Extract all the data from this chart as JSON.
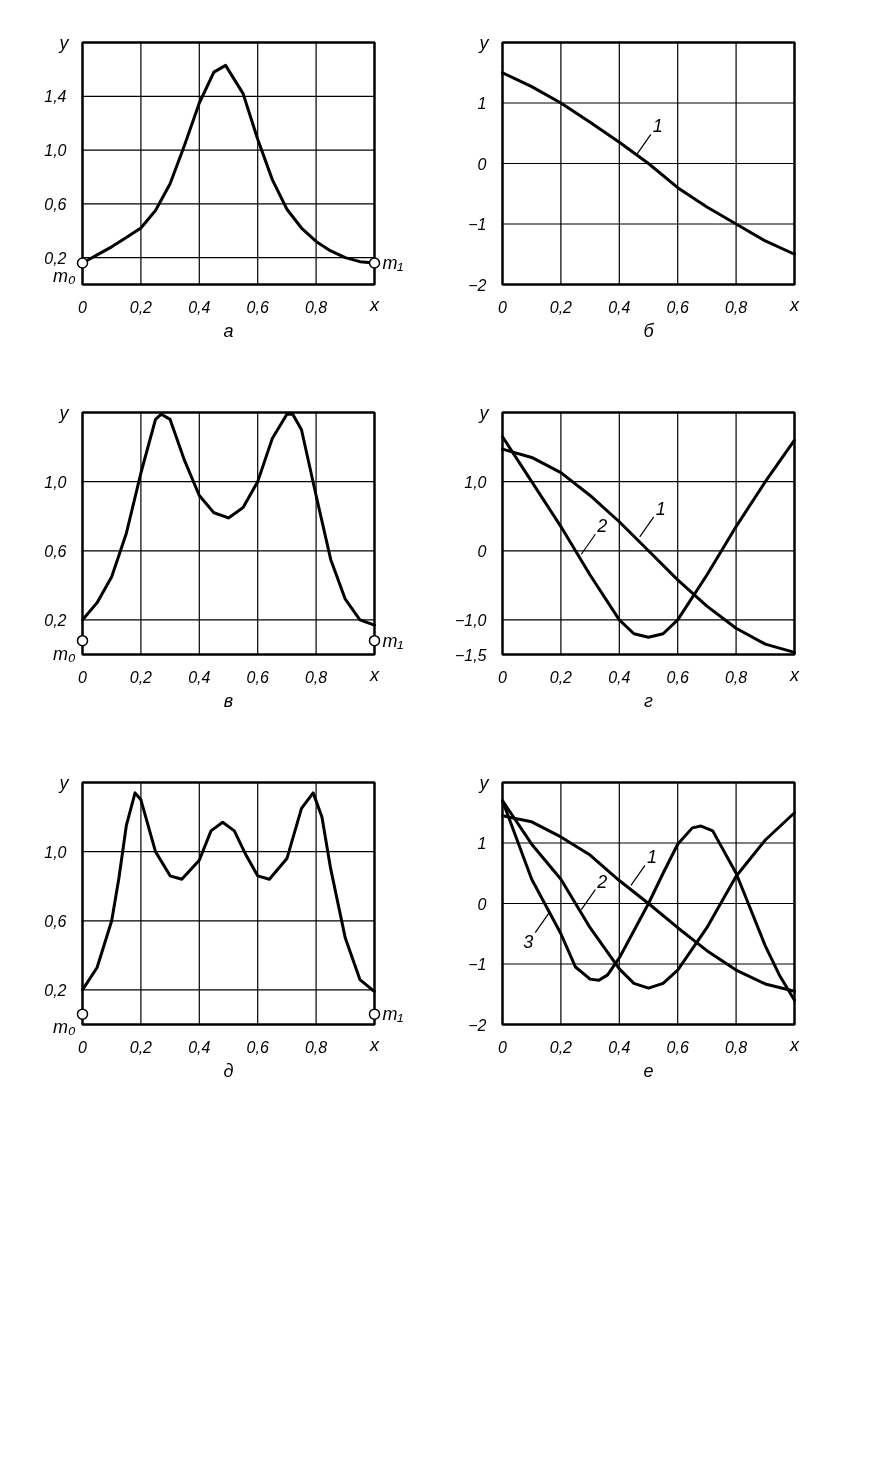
{
  "chart_data": [
    {
      "type": "line",
      "title": "а",
      "xlabel": "x",
      "ylabel": "y",
      "xlim": [
        0,
        1
      ],
      "ylim": [
        0,
        1.8
      ],
      "xticks": [
        0,
        {
          "value": 0.2,
          "label": "0,2"
        },
        {
          "value": 0.4,
          "label": "0,4"
        },
        {
          "value": 0.6,
          "label": "0,6"
        },
        {
          "value": 0.8,
          "label": "0,8"
        }
      ],
      "yticks": [
        {
          "value": 0.2,
          "label": "0,2"
        },
        {
          "value": 0.6,
          "label": "0,6"
        },
        {
          "value": 1.0,
          "label": "1,0"
        },
        {
          "value": 1.4,
          "label": "1,4"
        }
      ],
      "grid": true,
      "series": [
        {
          "color": "#000000",
          "x": [
            0,
            0.05,
            0.1,
            0.15,
            0.2,
            0.25,
            0.3,
            0.35,
            0.4,
            0.45,
            0.49,
            0.55,
            0.6,
            0.65,
            0.7,
            0.75,
            0.8,
            0.85,
            0.9,
            0.95,
            1.0
          ],
          "values": [
            0.16,
            0.22,
            0.28,
            0.35,
            0.42,
            0.55,
            0.75,
            1.04,
            1.35,
            1.58,
            1.63,
            1.42,
            1.08,
            0.78,
            0.56,
            0.42,
            0.32,
            0.25,
            0.2,
            0.17,
            0.16
          ]
        },
        {
          "type": "scatter",
          "color": "#000000",
          "marker": "circle",
          "x": [
            0,
            1
          ],
          "values": [
            0.16,
            0.16
          ]
        }
      ],
      "annotations": [
        {
          "text": "m₀",
          "x": 0,
          "y": 0.16
        },
        {
          "text": "m₁",
          "x": 1,
          "y": 0.16
        }
      ]
    },
    {
      "type": "line",
      "title": "б",
      "xlabel": "x",
      "ylabel": "y",
      "xlim": [
        0,
        1
      ],
      "ylim": [
        -2,
        2
      ],
      "xticks": [
        0,
        {
          "value": 0.2,
          "label": "0,2"
        },
        {
          "value": 0.4,
          "label": "0,4"
        },
        {
          "value": 0.6,
          "label": "0,6"
        },
        {
          "value": 0.8,
          "label": "0,8"
        }
      ],
      "yticks": [
        {
          "value": -2,
          "label": "−2"
        },
        {
          "value": -1,
          "label": "−1"
        },
        0,
        1
      ],
      "grid": true,
      "series": [
        {
          "color": "#000000",
          "x": [
            0,
            0.1,
            0.2,
            0.3,
            0.4,
            0.5,
            0.6,
            0.7,
            0.8,
            0.9,
            1.0
          ],
          "values": [
            1.5,
            1.27,
            1.0,
            0.68,
            0.35,
            0,
            -0.4,
            -0.72,
            -1.0,
            -1.28,
            -1.5
          ]
        }
      ],
      "annotations": [
        {
          "text": "1",
          "x": 0.46,
          "y": 0.15
        }
      ]
    },
    {
      "type": "line",
      "title": "в",
      "xlabel": "x",
      "ylabel": "y",
      "xlim": [
        0,
        1
      ],
      "ylim": [
        0,
        1.4
      ],
      "xticks": [
        0,
        {
          "value": 0.2,
          "label": "0,2"
        },
        {
          "value": 0.4,
          "label": "0,4"
        },
        {
          "value": 0.6,
          "label": "0,6"
        },
        {
          "value": 0.8,
          "label": "0,8"
        }
      ],
      "yticks": [
        {
          "value": 0.2,
          "label": "0,2"
        },
        {
          "value": 0.6,
          "label": "0,6"
        },
        {
          "value": 1.0,
          "label": "1,0"
        }
      ],
      "grid": true,
      "series": [
        {
          "color": "#000000",
          "x": [
            0,
            0.05,
            0.1,
            0.15,
            0.2,
            0.25,
            0.27,
            0.3,
            0.35,
            0.4,
            0.45,
            0.5,
            0.55,
            0.6,
            0.65,
            0.7,
            0.72,
            0.75,
            0.8,
            0.85,
            0.9,
            0.95,
            1.0
          ],
          "values": [
            0.2,
            0.3,
            0.45,
            0.7,
            1.05,
            1.36,
            1.39,
            1.36,
            1.12,
            0.92,
            0.82,
            0.79,
            0.85,
            1.0,
            1.25,
            1.39,
            1.39,
            1.3,
            0.92,
            0.55,
            0.32,
            0.2,
            0.17
          ]
        },
        {
          "type": "scatter",
          "color": "#000000",
          "marker": "circle",
          "x": [
            0,
            1
          ],
          "values": [
            0.08,
            0.08
          ]
        }
      ],
      "annotations": [
        {
          "text": "m₀",
          "x": 0,
          "y": 0.08
        },
        {
          "text": "m₁",
          "x": 1,
          "y": 0.08
        }
      ]
    },
    {
      "type": "line",
      "title": "г",
      "xlabel": "x",
      "ylabel": "y",
      "xlim": [
        0,
        1
      ],
      "ylim": [
        -1.5,
        2
      ],
      "xticks": [
        0,
        {
          "value": 0.2,
          "label": "0,2"
        },
        {
          "value": 0.4,
          "label": "0,4"
        },
        {
          "value": 0.6,
          "label": "0,6"
        },
        {
          "value": 0.8,
          "label": "0,8"
        }
      ],
      "yticks": [
        {
          "value": -1.5,
          "label": "−1,5"
        },
        {
          "value": -1.0,
          "label": "−1,0"
        },
        0,
        {
          "value": 1.0,
          "label": "1,0"
        }
      ],
      "grid": true,
      "series": [
        {
          "color": "#000000",
          "x": [
            0,
            0.1,
            0.2,
            0.3,
            0.4,
            0.5,
            0.6,
            0.7,
            0.8,
            0.9,
            1.0
          ],
          "values": [
            1.47,
            1.35,
            1.13,
            0.8,
            0.42,
            0,
            -0.42,
            -0.8,
            -1.12,
            -1.35,
            -1.47
          ]
        },
        {
          "color": "#000000",
          "x": [
            0,
            0.1,
            0.2,
            0.3,
            0.4,
            0.45,
            0.5,
            0.55,
            0.6,
            0.7,
            0.8,
            0.9,
            1.0
          ],
          "values": [
            1.65,
            1.0,
            0.35,
            -0.35,
            -1.0,
            -1.2,
            -1.25,
            -1.2,
            -1.0,
            -0.35,
            0.35,
            1.0,
            1.6
          ]
        }
      ],
      "annotations": [
        {
          "text": "1",
          "x": 0.47,
          "y": 0.2
        },
        {
          "text": "2",
          "x": 0.27,
          "y": -0.05
        }
      ]
    },
    {
      "type": "line",
      "title": "д",
      "xlabel": "x",
      "ylabel": "y",
      "xlim": [
        0,
        1
      ],
      "ylim": [
        0,
        1.4
      ],
      "xticks": [
        0,
        {
          "value": 0.2,
          "label": "0,2"
        },
        {
          "value": 0.4,
          "label": "0,4"
        },
        {
          "value": 0.6,
          "label": "0,6"
        },
        {
          "value": 0.8,
          "label": "0,8"
        }
      ],
      "yticks": [
        {
          "value": 0.2,
          "label": "0,2"
        },
        {
          "value": 0.6,
          "label": "0,6"
        },
        {
          "value": 1.0,
          "label": "1,0"
        }
      ],
      "grid": true,
      "series": [
        {
          "color": "#000000",
          "x": [
            0,
            0.05,
            0.1,
            0.125,
            0.15,
            0.18,
            0.2,
            0.25,
            0.3,
            0.34,
            0.4,
            0.44,
            0.48,
            0.52,
            0.56,
            0.6,
            0.64,
            0.7,
            0.75,
            0.79,
            0.82,
            0.85,
            0.9,
            0.95,
            1.0
          ],
          "values": [
            0.2,
            0.33,
            0.6,
            0.85,
            1.15,
            1.34,
            1.3,
            1.0,
            0.86,
            0.84,
            0.95,
            1.12,
            1.17,
            1.12,
            0.98,
            0.86,
            0.84,
            0.96,
            1.25,
            1.34,
            1.2,
            0.9,
            0.5,
            0.26,
            0.19
          ]
        },
        {
          "type": "scatter",
          "color": "#000000",
          "marker": "circle",
          "x": [
            0,
            1
          ],
          "values": [
            0.06,
            0.06
          ]
        }
      ],
      "annotations": [
        {
          "text": "m₀",
          "x": 0,
          "y": 0.06
        },
        {
          "text": "m₁",
          "x": 1,
          "y": 0.06
        }
      ]
    },
    {
      "type": "line",
      "title": "е",
      "xlabel": "x",
      "ylabel": "y",
      "xlim": [
        0,
        1
      ],
      "ylim": [
        -2,
        2
      ],
      "xticks": [
        0,
        {
          "value": 0.2,
          "label": "0,2"
        },
        {
          "value": 0.4,
          "label": "0,4"
        },
        {
          "value": 0.6,
          "label": "0,6"
        },
        {
          "value": 0.8,
          "label": "0,8"
        }
      ],
      "yticks": [
        {
          "value": -2,
          "label": "−2"
        },
        {
          "value": -1,
          "label": "−1"
        },
        0,
        1
      ],
      "grid": true,
      "series": [
        {
          "color": "#000000",
          "x": [
            0,
            0.1,
            0.2,
            0.3,
            0.4,
            0.5,
            0.6,
            0.7,
            0.8,
            0.9,
            1.0
          ],
          "values": [
            1.45,
            1.35,
            1.1,
            0.8,
            0.38,
            0,
            -0.4,
            -0.78,
            -1.1,
            -1.33,
            -1.45
          ]
        },
        {
          "color": "#000000",
          "x": [
            0,
            0.1,
            0.2,
            0.3,
            0.4,
            0.45,
            0.5,
            0.55,
            0.6,
            0.7,
            0.8,
            0.9,
            1.0
          ],
          "values": [
            1.7,
            0.98,
            0.4,
            -0.4,
            -1.08,
            -1.32,
            -1.4,
            -1.32,
            -1.1,
            -0.4,
            0.45,
            1.05,
            1.5
          ]
        },
        {
          "color": "#000000",
          "x": [
            0,
            0.05,
            0.1,
            0.15,
            0.2,
            0.25,
            0.3,
            0.33,
            0.36,
            0.4,
            0.45,
            0.5,
            0.55,
            0.6,
            0.65,
            0.68,
            0.72,
            0.8,
            0.85,
            0.9,
            0.95,
            1.0
          ],
          "values": [
            1.7,
            1.05,
            0.4,
            -0.05,
            -0.5,
            -1.05,
            -1.25,
            -1.27,
            -1.18,
            -0.9,
            -0.45,
            0,
            0.5,
            0.98,
            1.25,
            1.28,
            1.2,
            0.5,
            -0.1,
            -0.7,
            -1.2,
            -1.6
          ]
        }
      ],
      "annotations": [
        {
          "text": "1",
          "x": 0.44,
          "y": 0.3
        },
        {
          "text": "2",
          "x": 0.27,
          "y": -0.1
        },
        {
          "text": "3",
          "x": 0.16,
          "y": -0.15
        }
      ]
    }
  ]
}
